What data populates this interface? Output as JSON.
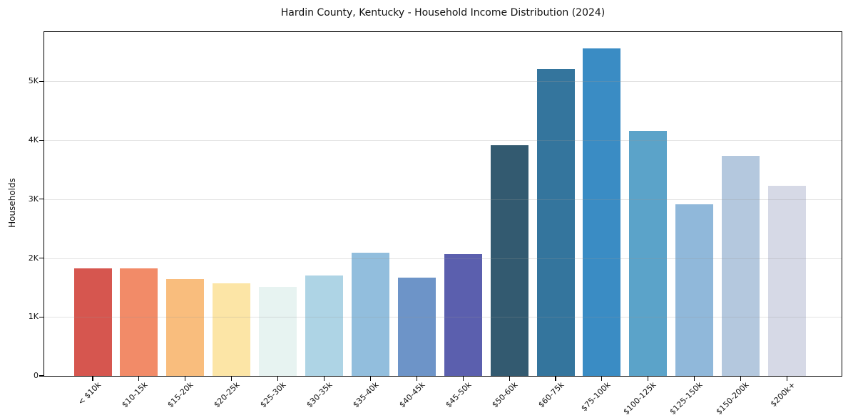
{
  "page": {
    "background_color": "#ffffff",
    "text_color": "#111111",
    "gridline_color": "#e8e8e8"
  },
  "chart_data": {
    "type": "bar",
    "title": "Hardin County, Kentucky - Household Income Distribution (2024)",
    "xlabel": "",
    "ylabel": "Households",
    "categories": [
      "< $10k",
      "$10-15k",
      "$15-20k",
      "$20-25k",
      "$25-30k",
      "$30-35k",
      "$35-40k",
      "$40-45k",
      "$45-50k",
      "$50-60k",
      "$60-75k",
      "$75-100k",
      "$100-125k",
      "$125-150k",
      "$150-200k",
      "$200k+"
    ],
    "values": [
      1830,
      1830,
      1650,
      1570,
      1510,
      1700,
      2090,
      1670,
      2070,
      3920,
      5210,
      5560,
      4160,
      2920,
      3740,
      3230
    ],
    "bar_colors": [
      "#d6564f",
      "#f28b68",
      "#f9bd7d",
      "#fce5a6",
      "#e7f3f1",
      "#aed4e5",
      "#92bedd",
      "#6d94c8",
      "#5b5fae",
      "#335a70",
      "#34759d",
      "#3a8cc4",
      "#5ba3c9",
      "#90b8da",
      "#b4c8de",
      "#d6d9e6"
    ],
    "ylim": [
      0,
      5840
    ],
    "yticks": [
      {
        "value": 0,
        "label": "0"
      },
      {
        "value": 1000,
        "label": "1K"
      },
      {
        "value": 2000,
        "label": "2K"
      },
      {
        "value": 3000,
        "label": "3K"
      },
      {
        "value": 4000,
        "label": "4K"
      },
      {
        "value": 5000,
        "label": "5K"
      }
    ],
    "grid": "horizontal-on",
    "legend": "none"
  }
}
